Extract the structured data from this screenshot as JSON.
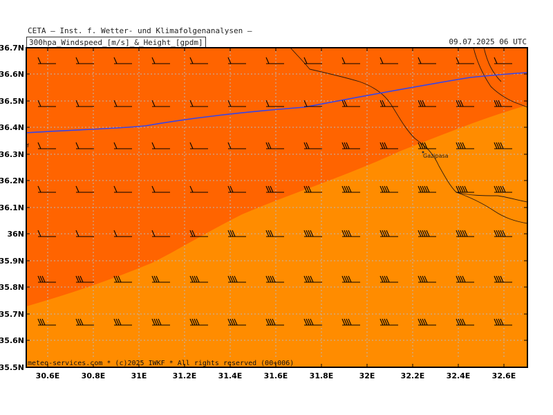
{
  "header": {
    "line1": "CETA — Inst. f. Wetter- und Klimafolgenanalysen —",
    "line2": "300hpa_Windspeed_[m/s]_&_Height_[gpdm]",
    "datetime": "09.07.2025 06 UTC"
  },
  "map": {
    "lat_labels": [
      "36.7N",
      "36.6N",
      "36.5N",
      "36.4N",
      "36.3N",
      "36.2N",
      "36.1N",
      "36N",
      "35.9N",
      "35.8N",
      "35.7N",
      "35.6N",
      "35.5N"
    ],
    "lon_labels": [
      "30.6E",
      "30.8E",
      "31E",
      "31.2E",
      "31.4E",
      "31.6E",
      "31.8E",
      "32E",
      "32.2E",
      "32.4E",
      "32.6E"
    ],
    "city": "Gazipasa",
    "footer": "meteo-services.com * (c)2025 IWKF * All rights reserved (00+006)",
    "colors": {
      "dark_orange": "#ff6400",
      "light_orange": "#ff8c00",
      "height_contour": "#3344ee",
      "grid": "#b8b8b8"
    }
  }
}
